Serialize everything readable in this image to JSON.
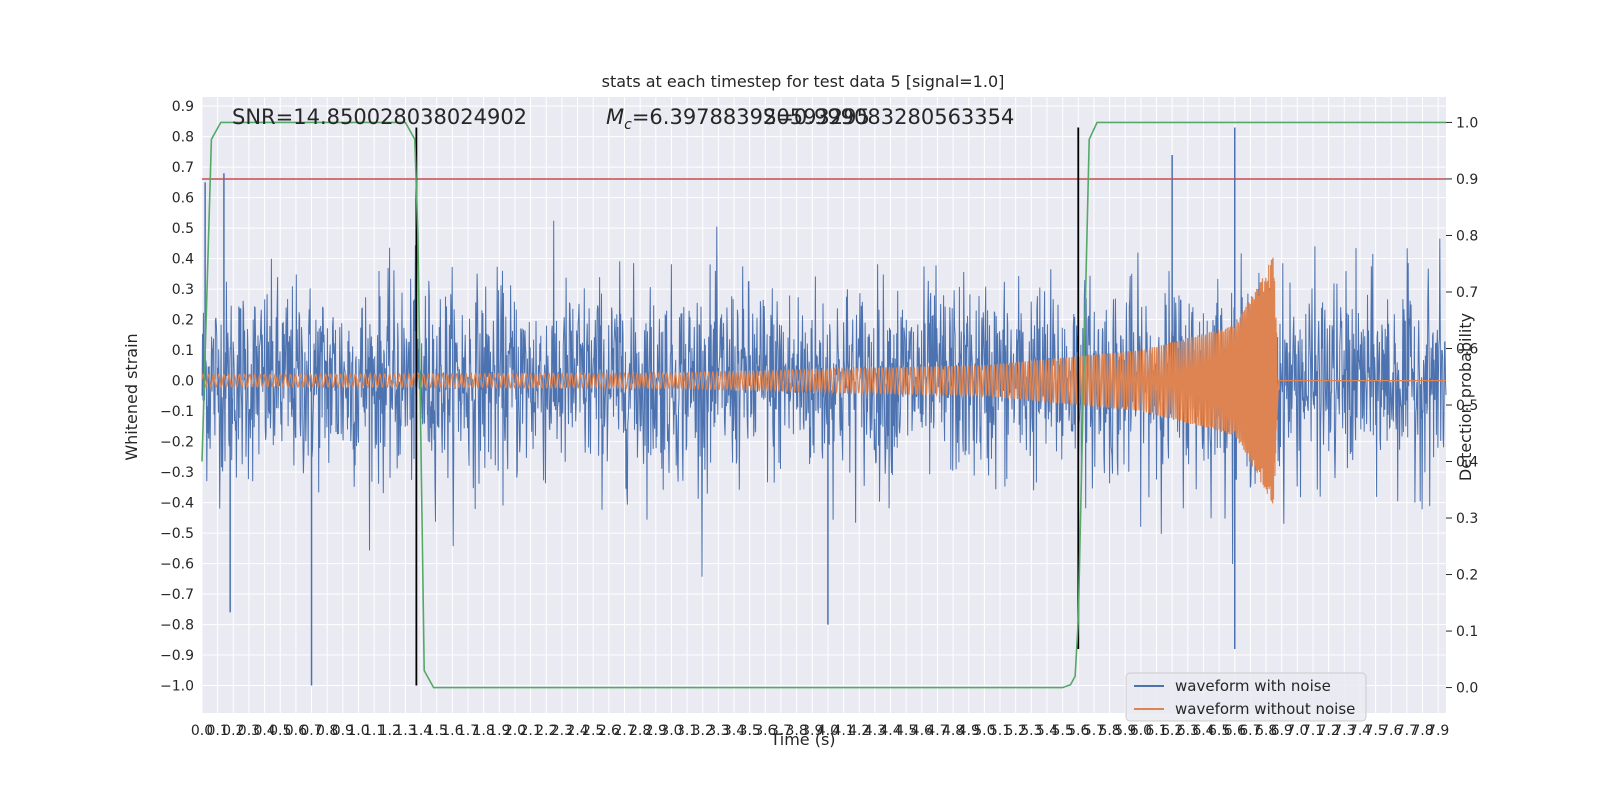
{
  "chart_data": {
    "type": "line",
    "title": "stats at each timestep for test data 5 [signal=1.0]",
    "xlabel": "Time (s)",
    "ylabel": "Whitened strain",
    "y2label": "Detection probability",
    "xlim": [
      0.0,
      7.95
    ],
    "ylim": [
      -1.09,
      0.93
    ],
    "y2lim": [
      -0.045,
      1.045
    ],
    "xticks": [
      0.0,
      0.1,
      0.2,
      0.3,
      0.4,
      0.5,
      0.6,
      0.7,
      0.8,
      0.9,
      1.0,
      1.1,
      1.2,
      1.3,
      1.4,
      1.5,
      1.6,
      1.7,
      1.8,
      1.9,
      2.0,
      2.1,
      2.2,
      2.3,
      2.4,
      2.5,
      2.6,
      2.7,
      2.8,
      2.9,
      3.0,
      3.1,
      3.2,
      3.3,
      3.4,
      3.5,
      3.6,
      3.7,
      3.8,
      3.9,
      4.0,
      4.1,
      4.2,
      4.3,
      4.4,
      4.5,
      4.6,
      4.7,
      4.8,
      4.9,
      5.0,
      5.1,
      5.2,
      5.3,
      5.4,
      5.5,
      5.6,
      5.7,
      5.8,
      5.9,
      6.0,
      6.1,
      6.2,
      6.3,
      6.4,
      6.5,
      6.6,
      6.7,
      6.8,
      6.9,
      7.0,
      7.1,
      7.2,
      7.3,
      7.4,
      7.5,
      7.6,
      7.7,
      7.8,
      7.9
    ],
    "xticklabels": [
      "0.0",
      "0.1",
      "0.2",
      "0.3",
      "0.4",
      "0.5",
      "0.6",
      "0.7",
      "0.8",
      "0.9",
      "1.0",
      "1.1",
      "1.2",
      "1.3",
      "1.4",
      "1.5",
      "1.6",
      "1.7",
      "1.8",
      "1.9",
      "2.0",
      "2.1",
      "2.2",
      "2.3",
      "2.4",
      "2.5",
      "2.6",
      "2.7",
      "2.8",
      "2.9",
      "3.0",
      "3.1",
      "3.2",
      "3.3",
      "3.4",
      "3.5",
      "3.6",
      "3.7",
      "3.8",
      "3.9",
      "4.0",
      "4.1",
      "4.2",
      "4.3",
      "4.4",
      "4.5",
      "4.6",
      "4.7",
      "4.8",
      "4.9",
      "5.0",
      "5.1",
      "5.2",
      "5.3",
      "5.4",
      "5.5",
      "5.6",
      "5.7",
      "5.8",
      "5.9",
      "6.0",
      "6.1",
      "6.2",
      "6.3",
      "6.4",
      "6.5",
      "6.6",
      "6.7",
      "6.8",
      "6.9",
      "7.0",
      "7.1",
      "7.2",
      "7.3",
      "7.4",
      "7.5",
      "7.6",
      "7.7",
      "7.8",
      "7.9"
    ],
    "yticks": [
      0.9,
      0.8,
      0.7,
      0.6,
      0.5,
      0.4,
      0.3,
      0.2,
      0.1,
      0.0,
      -0.1,
      -0.2,
      -0.3,
      -0.4,
      -0.5,
      -0.6,
      -0.7,
      -0.8,
      -0.9,
      -1.0
    ],
    "yticklabels": [
      "0.9",
      "0.8",
      "0.7",
      "0.6",
      "0.5",
      "0.4",
      "0.3",
      "0.2",
      "0.1",
      "0.0",
      "−0.1",
      "−0.2",
      "−0.3",
      "−0.4",
      "−0.5",
      "−0.6",
      "−0.7",
      "−0.8",
      "−0.9",
      "−1.0"
    ],
    "y2ticks": [
      1.0,
      0.9,
      0.8,
      0.7,
      0.6,
      0.5,
      0.4,
      0.3,
      0.2,
      0.1,
      0.0
    ],
    "y2ticklabels": [
      "1.0",
      "0.9",
      "0.8",
      "0.7",
      "0.6",
      "0.5",
      "0.4",
      "0.3",
      "0.2",
      "0.1",
      "0.0"
    ],
    "annotations": {
      "snr_text": "SNR=14.850028038024902",
      "mc_prefix": "M",
      "mc_subscript": "c",
      "mc_value": "=6.397883920593295",
      "overlap_text": "S=0.999083280563354"
    },
    "threshold_line": {
      "value": 0.9,
      "axis": "y2",
      "color": "#c44e52"
    },
    "vertical_lines": [
      {
        "x": 1.37,
        "y_from": -1.0,
        "y_to": 0.83,
        "color": "#000000"
      },
      {
        "x": 5.6,
        "y_from": -0.88,
        "y_to": 0.83,
        "color": "#000000"
      }
    ],
    "series": [
      {
        "name": "waveform with noise",
        "color": "#4c72b0",
        "description": "whitened strain with Gaussian noise, envelope about +/-0.3 with spikes up to 0.8 and down to -1.0",
        "peaks": [
          {
            "x": 0.02,
            "y": 0.65
          },
          {
            "x": 0.14,
            "y": 0.68
          },
          {
            "x": 0.7,
            "y": -1.0
          },
          {
            "x": 0.18,
            "y": -0.76
          },
          {
            "x": 1.37,
            "y": 0.56
          },
          {
            "x": 4.0,
            "y": -0.8
          },
          {
            "x": 6.6,
            "y": 0.83
          },
          {
            "x": 6.6,
            "y": -0.88
          },
          {
            "x": 6.2,
            "y": 0.74
          }
        ]
      },
      {
        "name": "waveform without noise",
        "color": "#dd8452",
        "description": "chirp signal, amplitude grows from about 0.02 to 0.41 at merger near 6.85 s, then ringdown to 0",
        "amplitude_points": [
          {
            "x": 0.0,
            "y": 0.02
          },
          {
            "x": 3.0,
            "y": 0.025
          },
          {
            "x": 5.0,
            "y": 0.05
          },
          {
            "x": 6.0,
            "y": 0.1
          },
          {
            "x": 6.6,
            "y": 0.18
          },
          {
            "x": 6.85,
            "y": 0.41
          },
          {
            "x": 6.88,
            "y": 0.0
          },
          {
            "x": 7.95,
            "y": 0.0
          }
        ]
      },
      {
        "name": "detection probability",
        "color": "#55a868",
        "axis": "y2",
        "x": [
          0.0,
          0.06,
          0.12,
          0.2,
          0.3,
          0.5,
          0.8,
          1.0,
          1.2,
          1.3,
          1.36,
          1.38,
          1.42,
          1.48,
          1.56,
          1.7,
          2.0,
          3.0,
          4.0,
          5.0,
          5.5,
          5.55,
          5.58,
          5.6,
          5.63,
          5.67,
          5.72,
          5.8,
          6.0,
          7.0,
          7.95
        ],
        "y": [
          0.4,
          0.97,
          1.0,
          1.0,
          1.0,
          1.0,
          1.0,
          1.0,
          1.0,
          1.0,
          0.97,
          0.8,
          0.03,
          0.0,
          0.0,
          0.0,
          0.0,
          0.0,
          0.0,
          0.0,
          0.0,
          0.005,
          0.02,
          0.12,
          0.5,
          0.97,
          1.0,
          1.0,
          1.0,
          1.0,
          1.0
        ]
      }
    ],
    "legend": {
      "placement": "lower-right",
      "entries": [
        "waveform with noise",
        "waveform without noise"
      ]
    },
    "colors": {
      "plot_background": "#eaeaf2",
      "grid": "#ffffff"
    }
  }
}
